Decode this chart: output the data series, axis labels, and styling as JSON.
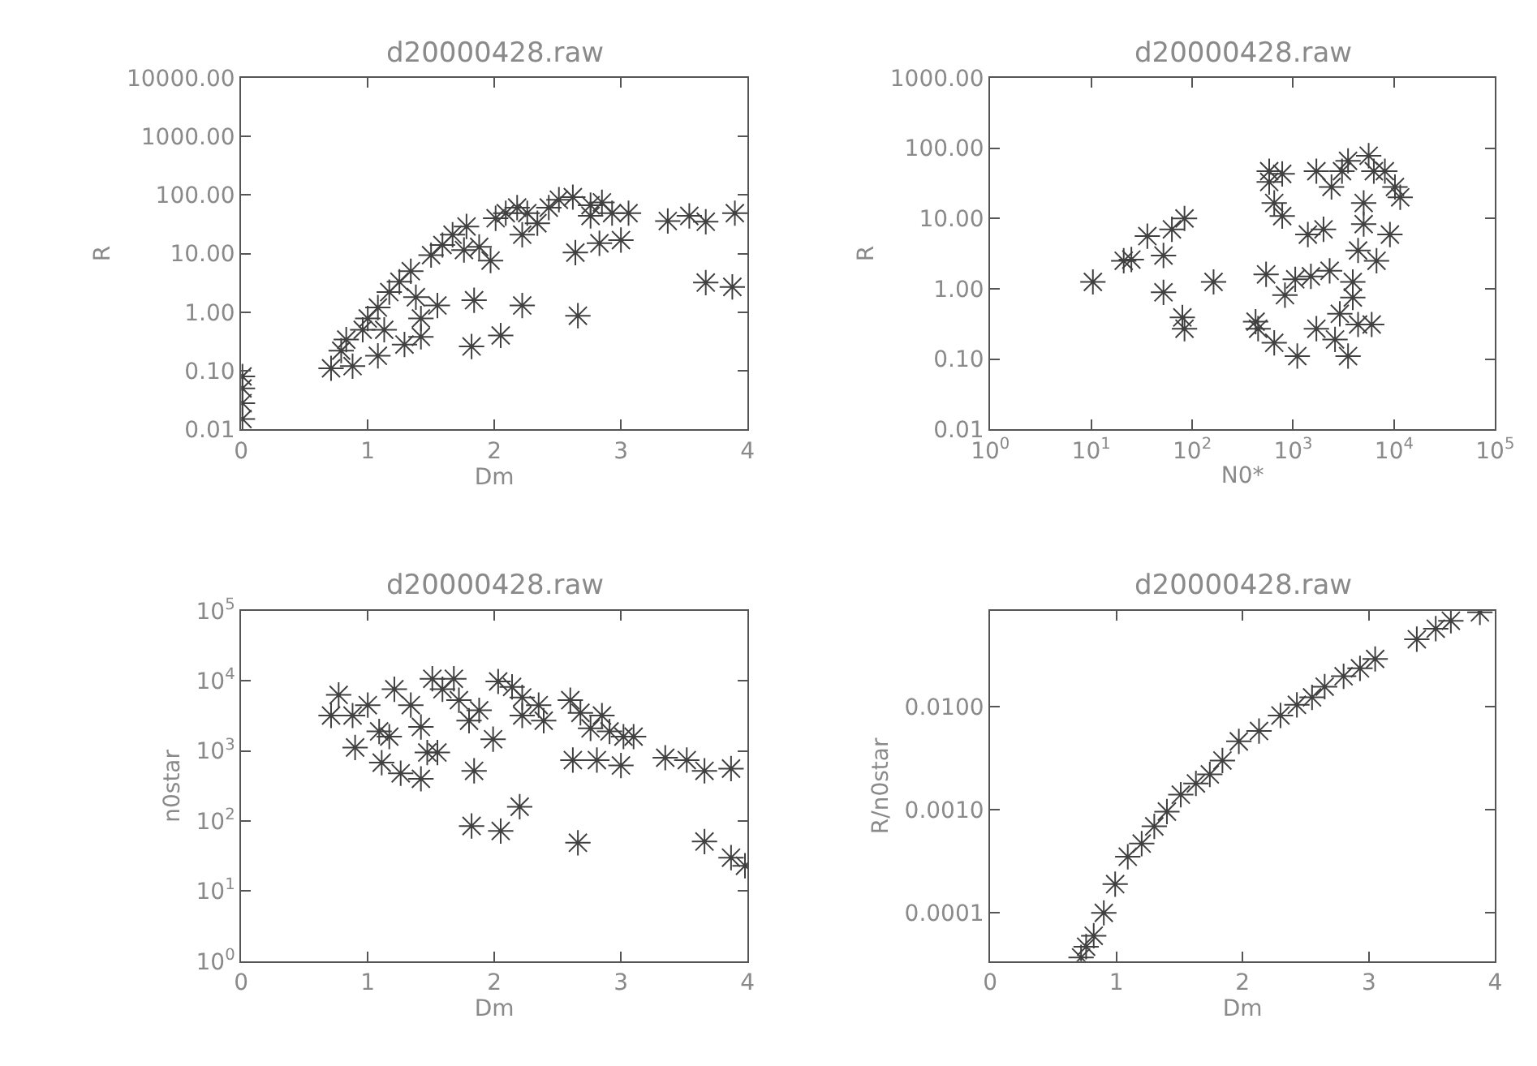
{
  "chart_data": [
    {
      "type": "scatter",
      "title": "d20000428.raw",
      "xlabel": "Dm",
      "ylabel": "R",
      "log": "y",
      "marker": "cross",
      "xlim": [
        0,
        4
      ],
      "xticks": [
        0,
        1,
        2,
        3,
        4
      ],
      "ylim": [
        0.01,
        10000
      ],
      "yticks": [
        {
          "value": 0.01,
          "label": "0.01"
        },
        {
          "value": 0.1,
          "label": "0.10"
        },
        {
          "value": 1,
          "label": "1.00"
        },
        {
          "value": 10,
          "label": "10.00"
        },
        {
          "value": 100,
          "label": "100.00"
        },
        {
          "value": 1000,
          "label": "1000.00"
        },
        {
          "value": 10000,
          "label": "10000.00"
        }
      ],
      "series": [
        {
          "color": "#404040",
          "x": [
            0.71,
            0.88,
            0.79,
            0.83,
            0.96,
            1.0,
            1.08,
            1.13,
            1.08,
            1.17,
            1.25,
            1.29,
            1.34,
            1.38,
            1.42,
            1.42,
            1.55,
            1.5,
            1.59,
            1.67,
            1.78,
            1.76,
            1.88,
            1.97,
            1.84,
            1.82,
            2.05,
            2.22,
            2.66,
            2.01,
            2.09,
            2.18,
            2.26,
            2.22,
            2.34,
            2.43,
            2.51,
            2.62,
            2.76,
            2.85,
            2.76,
            2.93,
            3.06,
            2.64,
            2.83,
            3.0,
            3.37,
            3.54,
            3.67,
            3.9,
            3.67,
            3.88,
            0.01,
            0.01,
            0.01,
            0.01
          ],
          "values": [
            0.11,
            0.12,
            0.22,
            0.34,
            0.5,
            0.78,
            1.2,
            0.5,
            0.18,
            2.2,
            3.3,
            0.28,
            5,
            1.8,
            0.78,
            0.38,
            1.3,
            9.4,
            14,
            21,
            29,
            11.5,
            13,
            7.6,
            1.6,
            0.26,
            0.4,
            1.3,
            0.87,
            40,
            49,
            61,
            49,
            21,
            33,
            61,
            83,
            92,
            67,
            75,
            44,
            49,
            49,
            10.4,
            15,
            17,
            36,
            44,
            35,
            49,
            3.2,
            2.7,
            0.08,
            0.05,
            0.028,
            0.015
          ]
        }
      ]
    },
    {
      "type": "scatter",
      "title": "d20000428.raw",
      "xlabel": "N0*",
      "ylabel": "R",
      "log": "xy",
      "marker": "cross",
      "xlim": [
        1,
        100000
      ],
      "xticks": [
        {
          "value": 1,
          "label": "10$^{0}$"
        },
        {
          "value": 10,
          "label": "10$^{1}$"
        },
        {
          "value": 100,
          "label": "10$^{2}$"
        },
        {
          "value": 1000,
          "label": "10$^{3}$"
        },
        {
          "value": 10000,
          "label": "10$^{4}$"
        },
        {
          "value": 100000,
          "label": "10$^{5}$"
        }
      ],
      "ylim": [
        0.01,
        1000
      ],
      "yticks": [
        {
          "value": 0.01,
          "label": "0.01"
        },
        {
          "value": 0.1,
          "label": "0.10"
        },
        {
          "value": 1,
          "label": "1.00"
        },
        {
          "value": 10,
          "label": "10.00"
        },
        {
          "value": 100,
          "label": "100.00"
        },
        {
          "value": 1000,
          "label": "1000.00"
        }
      ],
      "series": [
        {
          "color": "#404040",
          "x": [
            10.4,
            25,
            21,
            36,
            52,
            52,
            63,
            84,
            80,
            84,
            163,
            425,
            450,
            650,
            540,
            580,
            580,
            780,
            650,
            780,
            830,
            1100,
            1050,
            1500,
            1400,
            1700,
            1700,
            2000,
            2300,
            2600,
            2900,
            3050,
            3500,
            3500,
            3900,
            4400,
            5000,
            5600,
            6300,
            6000,
            6700,
            8100,
            10200,
            11500,
            9100,
            3900,
            2400,
            5000,
            4400
          ],
          "values": [
            1.25,
            2.6,
            2.5,
            5.6,
            2.97,
            0.89,
            7,
            10,
            0.39,
            0.27,
            1.25,
            0.34,
            0.27,
            0.17,
            1.6,
            47,
            33,
            43,
            16.6,
            10.8,
            0.81,
            0.11,
            1.36,
            1.5,
            5.9,
            47,
            0.27,
            7,
            1.8,
            0.19,
            0.44,
            47,
            66,
            0.11,
            0.75,
            3.5,
            8.3,
            78,
            47,
            0.31,
            2.5,
            47,
            28,
            20,
            5.9,
            1.25,
            28,
            16.6,
            0.31
          ]
        }
      ]
    },
    {
      "type": "scatter",
      "title": "d20000428.raw",
      "xlabel": "Dm",
      "ylabel": "n0star",
      "log": "y",
      "marker": "cross",
      "xlim": [
        0,
        4
      ],
      "xticks": [
        0,
        1,
        2,
        3,
        4
      ],
      "ylim": [
        1,
        100000
      ],
      "yticks": [
        {
          "value": 1,
          "label": "10$^{0}$"
        },
        {
          "value": 10,
          "label": "10$^{1}$"
        },
        {
          "value": 100,
          "label": "10$^{2}$"
        },
        {
          "value": 1000,
          "label": "10$^{3}$"
        },
        {
          "value": 10000,
          "label": "10$^{4}$"
        },
        {
          "value": 100000,
          "label": "10$^{5}$"
        }
      ],
      "series": [
        {
          "color": "#404040",
          "x": [
            0.77,
            0.71,
            0.88,
            0.9,
            1.0,
            1.09,
            1.11,
            1.17,
            1.26,
            1.21,
            1.34,
            1.42,
            1.42,
            1.47,
            1.55,
            1.51,
            1.59,
            1.68,
            1.72,
            1.8,
            1.88,
            1.99,
            1.84,
            1.82,
            2.05,
            2.2,
            2.66,
            2.03,
            2.14,
            2.22,
            2.22,
            2.35,
            2.39,
            2.6,
            2.68,
            2.76,
            2.85,
            2.91,
            3.02,
            3.1,
            2.62,
            2.81,
            3.0,
            3.35,
            3.52,
            3.66,
            3.87,
            3.66,
            3.87,
            3.98
          ],
          "values": [
            6300,
            3200,
            3200,
            1120,
            4500,
            1900,
            680,
            1600,
            480,
            7600,
            4500,
            400,
            2200,
            950,
            950,
            10700,
            7600,
            10700,
            5300,
            2700,
            3800,
            1470,
            520,
            85,
            72,
            160,
            49,
            9800,
            8200,
            5800,
            3200,
            4500,
            2700,
            5300,
            3500,
            2100,
            3200,
            1900,
            1600,
            1600,
            740,
            740,
            620,
            800,
            740,
            520,
            560,
            51,
            30,
            23
          ]
        }
      ]
    },
    {
      "type": "scatter",
      "title": "d20000428.raw",
      "xlabel": "Dm",
      "ylabel": "R/n0star",
      "log": "y",
      "marker": "cross",
      "xlim": [
        0,
        4
      ],
      "xticks": [
        0,
        1,
        2,
        3,
        4
      ],
      "ylim": [
        3.4e-05,
        0.085
      ],
      "yticks": [
        {
          "value": 0.0001,
          "label": "0.0001"
        },
        {
          "value": 0.001,
          "label": "0.0010"
        },
        {
          "value": 0.01,
          "label": "0.0100"
        }
      ],
      "series": [
        {
          "color": "#404040",
          "x": [
            0.72,
            0.76,
            0.82,
            0.9,
            0.99,
            1.09,
            1.2,
            1.3,
            1.4,
            1.51,
            1.63,
            1.74,
            1.84,
            1.97,
            2.13,
            2.3,
            2.43,
            2.55,
            2.65,
            2.8,
            2.93,
            3.05,
            3.38,
            3.53,
            3.65,
            3.88
          ],
          "values": [
            3.7e-05,
            4.7e-05,
            6e-05,
            0.0001,
            0.00019,
            0.00035,
            0.00047,
            0.00069,
            0.00096,
            0.0014,
            0.0018,
            0.0022,
            0.003,
            0.0046,
            0.0058,
            0.0082,
            0.0104,
            0.0123,
            0.0156,
            0.0197,
            0.0235,
            0.029,
            0.045,
            0.057,
            0.068,
            0.082
          ]
        }
      ]
    }
  ]
}
